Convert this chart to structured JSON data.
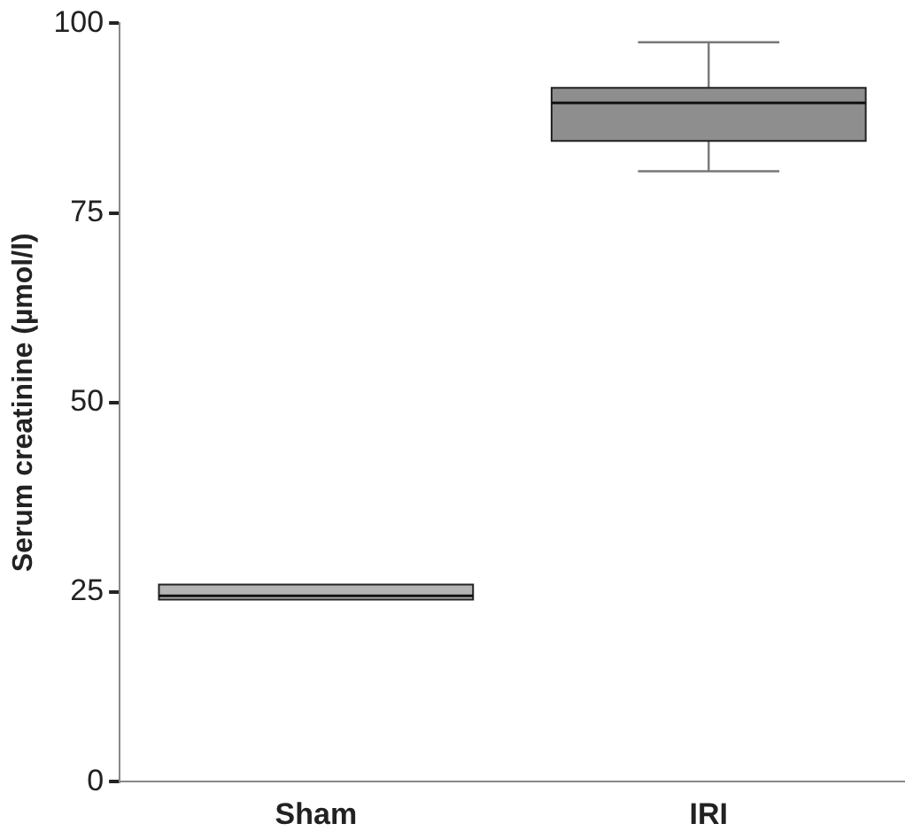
{
  "chart_data": {
    "type": "box",
    "ylabel": "Serum creatinine (µmol/l)",
    "categories": [
      "Sham",
      "IRI"
    ],
    "boxes": [
      {
        "low": 24,
        "q1": 24,
        "median": 24.5,
        "q3": 26,
        "high": 26
      },
      {
        "low": 80.5,
        "q1": 84.5,
        "median": 89.5,
        "q3": 91.5,
        "high": 97.5
      }
    ],
    "colors": [
      "#b4b4b4",
      "#8e8e8e"
    ],
    "ylim": [
      0,
      100
    ],
    "yticks": [
      0,
      25,
      50,
      75,
      100
    ],
    "grid": false,
    "legend": false
  }
}
